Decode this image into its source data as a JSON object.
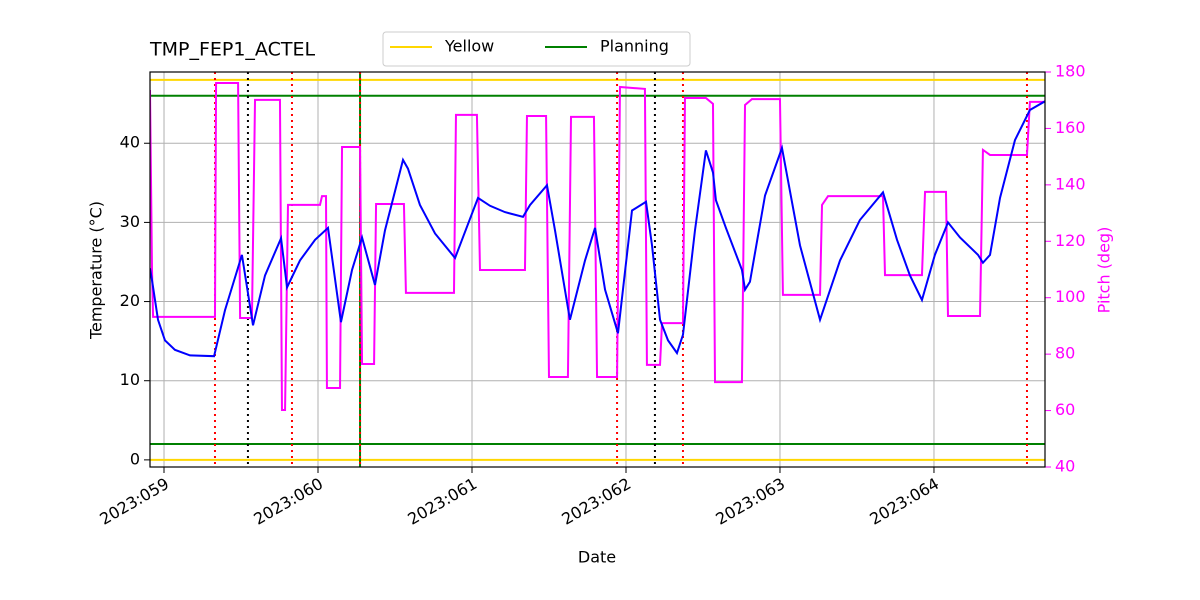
{
  "chart_data": {
    "type": "line",
    "title": "TMP_FEP1_ACTEL",
    "xlabel": "Date",
    "ylabel": "Temperature (°C)",
    "y2label": "Pitch (deg)",
    "xlim": [
      58.909,
      64.721
    ],
    "ylim": [
      -0.9,
      49
    ],
    "y2lim": [
      40,
      180
    ],
    "xticks": [
      {
        "value": 59,
        "label": "2023:059"
      },
      {
        "value": 60,
        "label": "2023:060"
      },
      {
        "value": 61,
        "label": "2023:061"
      },
      {
        "value": 62,
        "label": "2023:062"
      },
      {
        "value": 63,
        "label": "2023:063"
      },
      {
        "value": 64,
        "label": "2023:064"
      }
    ],
    "yticks": [
      0,
      10,
      20,
      30,
      40
    ],
    "y2ticks": [
      40,
      60,
      80,
      100,
      120,
      140,
      160,
      180
    ],
    "grid": true,
    "legend": "top",
    "series": [
      {
        "color": "#0000ff",
        "axis": "y",
        "x": [
          58.909,
          58.922,
          58.961,
          59.006,
          59.071,
          59.169,
          59.325,
          59.396,
          59.506,
          59.578,
          59.656,
          59.76,
          59.799,
          59.883,
          59.981,
          60.065,
          60.149,
          60.221,
          60.286,
          60.37,
          60.435,
          60.552,
          60.584,
          60.662,
          60.76,
          60.89,
          60.935,
          61.039,
          61.117,
          61.214,
          61.331,
          61.377,
          61.487,
          61.539,
          61.636,
          61.734,
          61.799,
          61.864,
          61.948,
          62.039,
          62.13,
          62.169,
          62.221,
          62.273,
          62.331,
          62.37,
          62.448,
          62.519,
          62.565,
          62.584,
          62.649,
          62.753,
          62.773,
          62.805,
          62.903,
          63.013,
          63.13,
          63.26,
          63.39,
          63.519,
          63.669,
          63.76,
          63.844,
          63.922,
          64.006,
          64.091,
          64.169,
          64.286,
          64.318,
          64.364,
          64.429,
          64.526,
          64.623,
          64.721
        ],
        "values": [
          24.2,
          22.7,
          17.7,
          15.1,
          13.9,
          13.2,
          13.1,
          18.9,
          25.9,
          17.0,
          23.3,
          28.0,
          21.8,
          25.2,
          27.8,
          29.3,
          17.4,
          24.0,
          28.1,
          22.1,
          29.0,
          37.9,
          36.8,
          32.2,
          28.6,
          25.5,
          27.8,
          33.1,
          32.1,
          31.3,
          30.7,
          32.2,
          34.7,
          29.0,
          17.7,
          25.2,
          29.3,
          21.5,
          16.0,
          31.5,
          32.6,
          27.1,
          17.7,
          15.1,
          13.5,
          15.8,
          29.0,
          39.1,
          36.3,
          32.8,
          29.3,
          24.0,
          21.5,
          22.5,
          33.4,
          39.4,
          27.1,
          17.7,
          25.2,
          30.3,
          33.8,
          27.8,
          23.3,
          20.2,
          25.9,
          30.0,
          28.1,
          25.9,
          24.9,
          25.9,
          33.1,
          40.4,
          44.2,
          45.3
        ]
      },
      {
        "color": "#ff00ff",
        "axis": "y2",
        "x": [
          58.909,
          58.922,
          58.929,
          59.331,
          59.338,
          59.481,
          59.494,
          59.571,
          59.591,
          59.753,
          59.766,
          59.786,
          59.805,
          60.013,
          60.026,
          60.052,
          60.058,
          60.143,
          60.156,
          60.273,
          60.286,
          60.364,
          60.377,
          60.558,
          60.571,
          60.883,
          60.896,
          61.032,
          61.052,
          61.344,
          61.357,
          61.481,
          61.5,
          61.623,
          61.643,
          61.792,
          61.812,
          61.942,
          61.961,
          62.123,
          62.136,
          62.221,
          62.234,
          62.37,
          62.383,
          62.519,
          62.565,
          62.578,
          62.753,
          62.773,
          62.818,
          63.0,
          63.019,
          63.26,
          63.273,
          63.312,
          63.669,
          63.682,
          63.922,
          63.942,
          64.078,
          64.091,
          64.299,
          64.318,
          64.364,
          64.604,
          64.623,
          64.721
        ],
        "values": [
          173.6,
          110,
          93.2,
          93.2,
          176.1,
          176.1,
          92.8,
          92.8,
          170.1,
          170.1,
          60.2,
          60.2,
          132.9,
          132.9,
          136.0,
          136.0,
          68.0,
          68.0,
          153.4,
          153.4,
          76.5,
          76.5,
          133.2,
          133.2,
          101.7,
          101.7,
          164.8,
          164.8,
          109.8,
          109.8,
          164.4,
          164.4,
          71.9,
          71.9,
          164.1,
          164.1,
          71.9,
          71.9,
          174.7,
          174.0,
          76.2,
          76.2,
          91.0,
          91.0,
          170.8,
          170.8,
          168.7,
          70.1,
          70.1,
          168.3,
          170.4,
          170.4,
          101.0,
          101.0,
          132.9,
          136.0,
          136.0,
          108.0,
          108.0,
          137.5,
          137.5,
          93.5,
          93.5,
          152.4,
          150.6,
          150.6,
          169.4,
          169.4
        ]
      }
    ],
    "limits": [
      {
        "name": "Yellow",
        "color": "#ffd700",
        "values": [
          0,
          48
        ]
      },
      {
        "name": "Planning",
        "color": "#008000",
        "values": [
          2,
          46
        ]
      }
    ],
    "vlines": [
      {
        "color": "#008000",
        "style": "solid",
        "x": [
          60.273
        ]
      },
      {
        "color": "#ff0000",
        "style": "dotted",
        "x": [
          59.331,
          59.831,
          60.273,
          61.942,
          62.37,
          64.604
        ]
      },
      {
        "color": "#000000",
        "style": "dotted",
        "x": [
          59.545,
          62.188
        ]
      }
    ]
  }
}
